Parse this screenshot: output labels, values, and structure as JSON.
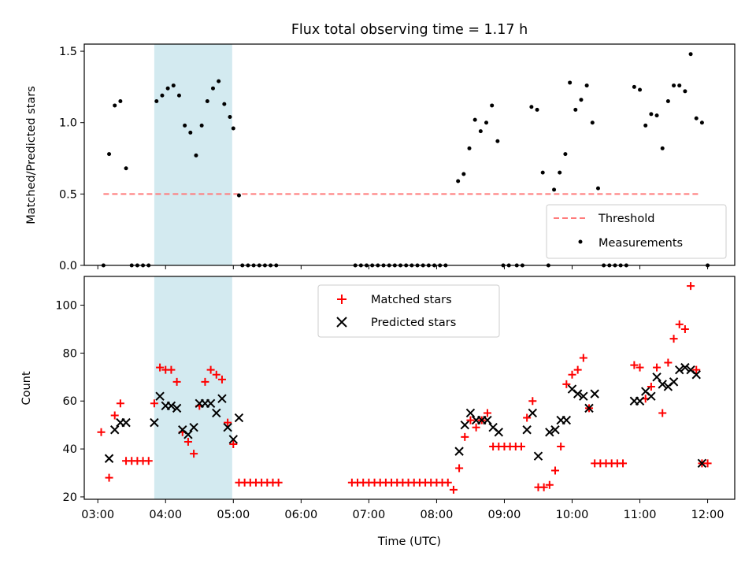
{
  "chart_data": [
    {
      "type": "scatter",
      "title": "Flux total observing time = 1.17 h",
      "xlabel": "",
      "ylabel": "Matched/Predicted stars",
      "xlim": [
        "02:48",
        "12:24"
      ],
      "ylim": [
        0,
        1.55
      ],
      "yticks": [
        0.0,
        0.5,
        1.0,
        1.5
      ],
      "ytick_labels": [
        "0.0",
        "0.5",
        "1.0",
        "1.5"
      ],
      "grid": false,
      "legend_position": "lower-right",
      "shaded_interval": {
        "start": "03:50",
        "end": "04:59",
        "color": "#d3eaf0"
      },
      "threshold": {
        "name": "Threshold",
        "value": 0.5,
        "x_start": "03:05",
        "x_end": "11:53",
        "color": "#ff7b7b"
      },
      "series": [
        {
          "name": "Measurements",
          "color": "#000000",
          "points": [
            [
              "03:05",
              0.0
            ],
            [
              "03:10",
              0.78
            ],
            [
              "03:15",
              1.12
            ],
            [
              "03:20",
              1.15
            ],
            [
              "03:25",
              0.68
            ],
            [
              "03:30",
              0.0
            ],
            [
              "03:35",
              0.0
            ],
            [
              "03:40",
              0.0
            ],
            [
              "03:45",
              0.0
            ],
            [
              "03:52",
              1.15
            ],
            [
              "03:57",
              1.19
            ],
            [
              "04:02",
              1.24
            ],
            [
              "04:07",
              1.26
            ],
            [
              "04:12",
              1.19
            ],
            [
              "04:17",
              0.98
            ],
            [
              "04:22",
              0.93
            ],
            [
              "04:27",
              0.77
            ],
            [
              "04:32",
              0.98
            ],
            [
              "04:37",
              1.15
            ],
            [
              "04:42",
              1.24
            ],
            [
              "04:47",
              1.29
            ],
            [
              "04:52",
              1.13
            ],
            [
              "04:57",
              1.04
            ],
            [
              "05:00",
              0.96
            ],
            [
              "05:05",
              0.49
            ],
            [
              "05:08",
              0.0
            ],
            [
              "05:13",
              0.0
            ],
            [
              "05:18",
              0.0
            ],
            [
              "05:23",
              0.0
            ],
            [
              "05:28",
              0.0
            ],
            [
              "05:33",
              0.0
            ],
            [
              "05:38",
              0.0
            ],
            [
              "06:48",
              0.0
            ],
            [
              "06:53",
              0.0
            ],
            [
              "06:58",
              0.0
            ],
            [
              "07:03",
              0.0
            ],
            [
              "07:08",
              0.0
            ],
            [
              "07:13",
              0.0
            ],
            [
              "07:18",
              0.0
            ],
            [
              "07:23",
              0.0
            ],
            [
              "07:28",
              0.0
            ],
            [
              "07:33",
              0.0
            ],
            [
              "07:38",
              0.0
            ],
            [
              "07:43",
              0.0
            ],
            [
              "07:48",
              0.0
            ],
            [
              "07:53",
              0.0
            ],
            [
              "07:58",
              0.0
            ],
            [
              "08:03",
              0.0
            ],
            [
              "08:08",
              0.0
            ],
            [
              "08:19",
              0.59
            ],
            [
              "08:24",
              0.64
            ],
            [
              "08:29",
              0.82
            ],
            [
              "08:34",
              1.02
            ],
            [
              "08:39",
              0.94
            ],
            [
              "08:44",
              1.0
            ],
            [
              "08:49",
              1.12
            ],
            [
              "08:54",
              0.87
            ],
            [
              "08:59",
              0.0
            ],
            [
              "09:04",
              0.0
            ],
            [
              "09:11",
              0.0
            ],
            [
              "09:16",
              0.0
            ],
            [
              "09:24",
              1.11
            ],
            [
              "09:29",
              1.09
            ],
            [
              "09:34",
              0.65
            ],
            [
              "09:39",
              0.0
            ],
            [
              "09:44",
              0.53
            ],
            [
              "09:49",
              0.65
            ],
            [
              "09:54",
              0.78
            ],
            [
              "09:58",
              1.28
            ],
            [
              "10:03",
              1.09
            ],
            [
              "10:08",
              1.16
            ],
            [
              "10:13",
              1.26
            ],
            [
              "10:18",
              1.0
            ],
            [
              "10:23",
              0.54
            ],
            [
              "10:28",
              0.0
            ],
            [
              "10:33",
              0.0
            ],
            [
              "10:38",
              0.0
            ],
            [
              "10:43",
              0.0
            ],
            [
              "10:48",
              0.0
            ],
            [
              "10:55",
              1.25
            ],
            [
              "11:00",
              1.23
            ],
            [
              "11:05",
              0.98
            ],
            [
              "11:10",
              1.06
            ],
            [
              "11:15",
              1.05
            ],
            [
              "11:20",
              0.82
            ],
            [
              "11:25",
              1.15
            ],
            [
              "11:30",
              1.26
            ],
            [
              "11:35",
              1.26
            ],
            [
              "11:40",
              1.22
            ],
            [
              "11:45",
              1.48
            ],
            [
              "11:50",
              1.03
            ],
            [
              "11:55",
              1.0
            ],
            [
              "12:00",
              0.0
            ]
          ]
        }
      ],
      "legend": [
        "Threshold",
        "Measurements"
      ]
    },
    {
      "type": "scatter",
      "title": "",
      "xlabel": "Time (UTC)",
      "ylabel": "Count",
      "xlim": [
        "02:48",
        "12:24"
      ],
      "xticks": [
        "03:00",
        "04:00",
        "05:00",
        "06:00",
        "07:00",
        "08:00",
        "09:00",
        "10:00",
        "11:00",
        "12:00"
      ],
      "ylim": [
        19,
        112
      ],
      "yticks": [
        20,
        40,
        60,
        80,
        100
      ],
      "grid": false,
      "legend_position": "top-center",
      "shaded_interval": {
        "start": "03:50",
        "end": "04:59",
        "color": "#d3eaf0"
      },
      "series": [
        {
          "name": "Matched stars",
          "marker": "+",
          "color": "#ff0000",
          "points": [
            [
              "03:03",
              47
            ],
            [
              "03:10",
              28
            ],
            [
              "03:15",
              54
            ],
            [
              "03:20",
              59
            ],
            [
              "03:25",
              35
            ],
            [
              "03:30",
              35
            ],
            [
              "03:35",
              35
            ],
            [
              "03:40",
              35
            ],
            [
              "03:45",
              35
            ],
            [
              "03:50",
              59
            ],
            [
              "03:55",
              74
            ],
            [
              "04:00",
              73
            ],
            [
              "04:05",
              73
            ],
            [
              "04:10",
              68
            ],
            [
              "04:15",
              47
            ],
            [
              "04:20",
              43
            ],
            [
              "04:25",
              38
            ],
            [
              "04:30",
              58
            ],
            [
              "04:35",
              68
            ],
            [
              "04:40",
              73
            ],
            [
              "04:45",
              71
            ],
            [
              "04:50",
              69
            ],
            [
              "04:55",
              51
            ],
            [
              "05:00",
              42
            ],
            [
              "05:05",
              26
            ],
            [
              "05:10",
              26
            ],
            [
              "05:15",
              26
            ],
            [
              "05:20",
              26
            ],
            [
              "05:25",
              26
            ],
            [
              "05:30",
              26
            ],
            [
              "05:35",
              26
            ],
            [
              "05:40",
              26
            ],
            [
              "06:45",
              26
            ],
            [
              "06:50",
              26
            ],
            [
              "06:55",
              26
            ],
            [
              "07:00",
              26
            ],
            [
              "07:05",
              26
            ],
            [
              "07:10",
              26
            ],
            [
              "07:15",
              26
            ],
            [
              "07:20",
              26
            ],
            [
              "07:25",
              26
            ],
            [
              "07:30",
              26
            ],
            [
              "07:35",
              26
            ],
            [
              "07:40",
              26
            ],
            [
              "07:45",
              26
            ],
            [
              "07:50",
              26
            ],
            [
              "07:55",
              26
            ],
            [
              "08:00",
              26
            ],
            [
              "08:05",
              26
            ],
            [
              "08:10",
              26
            ],
            [
              "08:15",
              23
            ],
            [
              "08:20",
              32
            ],
            [
              "08:25",
              45
            ],
            [
              "08:30",
              52
            ],
            [
              "08:35",
              49
            ],
            [
              "08:40",
              52
            ],
            [
              "08:45",
              55
            ],
            [
              "08:50",
              41
            ],
            [
              "08:55",
              41
            ],
            [
              "09:00",
              41
            ],
            [
              "09:05",
              41
            ],
            [
              "09:10",
              41
            ],
            [
              "09:15",
              41
            ],
            [
              "09:20",
              53
            ],
            [
              "09:25",
              60
            ],
            [
              "09:30",
              24
            ],
            [
              "09:35",
              24
            ],
            [
              "09:40",
              25
            ],
            [
              "09:45",
              31
            ],
            [
              "09:50",
              41
            ],
            [
              "09:55",
              67
            ],
            [
              "10:00",
              71
            ],
            [
              "10:05",
              73
            ],
            [
              "10:10",
              78
            ],
            [
              "10:15",
              57
            ],
            [
              "10:20",
              34
            ],
            [
              "10:25",
              34
            ],
            [
              "10:30",
              34
            ],
            [
              "10:35",
              34
            ],
            [
              "10:40",
              34
            ],
            [
              "10:45",
              34
            ],
            [
              "10:55",
              75
            ],
            [
              "11:00",
              74
            ],
            [
              "11:05",
              61
            ],
            [
              "11:10",
              66
            ],
            [
              "11:15",
              74
            ],
            [
              "11:20",
              55
            ],
            [
              "11:25",
              76
            ],
            [
              "11:30",
              86
            ],
            [
              "11:35",
              92
            ],
            [
              "11:40",
              90
            ],
            [
              "11:45",
              108
            ],
            [
              "11:50",
              73
            ],
            [
              "11:55",
              34
            ],
            [
              "12:00",
              34
            ]
          ]
        },
        {
          "name": "Predicted stars",
          "marker": "x",
          "color": "#000000",
          "points": [
            [
              "03:10",
              36
            ],
            [
              "03:15",
              48
            ],
            [
              "03:20",
              51
            ],
            [
              "03:25",
              51
            ],
            [
              "03:50",
              51
            ],
            [
              "03:55",
              62
            ],
            [
              "04:00",
              58
            ],
            [
              "04:05",
              58
            ],
            [
              "04:10",
              57
            ],
            [
              "04:15",
              48
            ],
            [
              "04:20",
              46
            ],
            [
              "04:25",
              49
            ],
            [
              "04:30",
              59
            ],
            [
              "04:35",
              59
            ],
            [
              "04:40",
              59
            ],
            [
              "04:45",
              55
            ],
            [
              "04:50",
              61
            ],
            [
              "04:55",
              49
            ],
            [
              "05:00",
              44
            ],
            [
              "05:05",
              53
            ],
            [
              "08:20",
              39
            ],
            [
              "08:25",
              50
            ],
            [
              "08:30",
              55
            ],
            [
              "08:35",
              52
            ],
            [
              "08:40",
              52
            ],
            [
              "08:45",
              52
            ],
            [
              "08:50",
              49
            ],
            [
              "08:55",
              47
            ],
            [
              "09:20",
              48
            ],
            [
              "09:25",
              55
            ],
            [
              "09:30",
              37
            ],
            [
              "09:40",
              47
            ],
            [
              "09:45",
              48
            ],
            [
              "09:50",
              52
            ],
            [
              "09:55",
              52
            ],
            [
              "10:00",
              65
            ],
            [
              "10:05",
              63
            ],
            [
              "10:10",
              62
            ],
            [
              "10:15",
              57
            ],
            [
              "10:20",
              63
            ],
            [
              "10:55",
              60
            ],
            [
              "11:00",
              60
            ],
            [
              "11:05",
              64
            ],
            [
              "11:10",
              62
            ],
            [
              "11:15",
              70
            ],
            [
              "11:20",
              67
            ],
            [
              "11:25",
              66
            ],
            [
              "11:30",
              68
            ],
            [
              "11:35",
              73
            ],
            [
              "11:40",
              74
            ],
            [
              "11:45",
              73
            ],
            [
              "11:50",
              71
            ],
            [
              "11:55",
              34
            ]
          ]
        }
      ],
      "legend": [
        "Matched stars",
        "Predicted stars"
      ]
    }
  ]
}
